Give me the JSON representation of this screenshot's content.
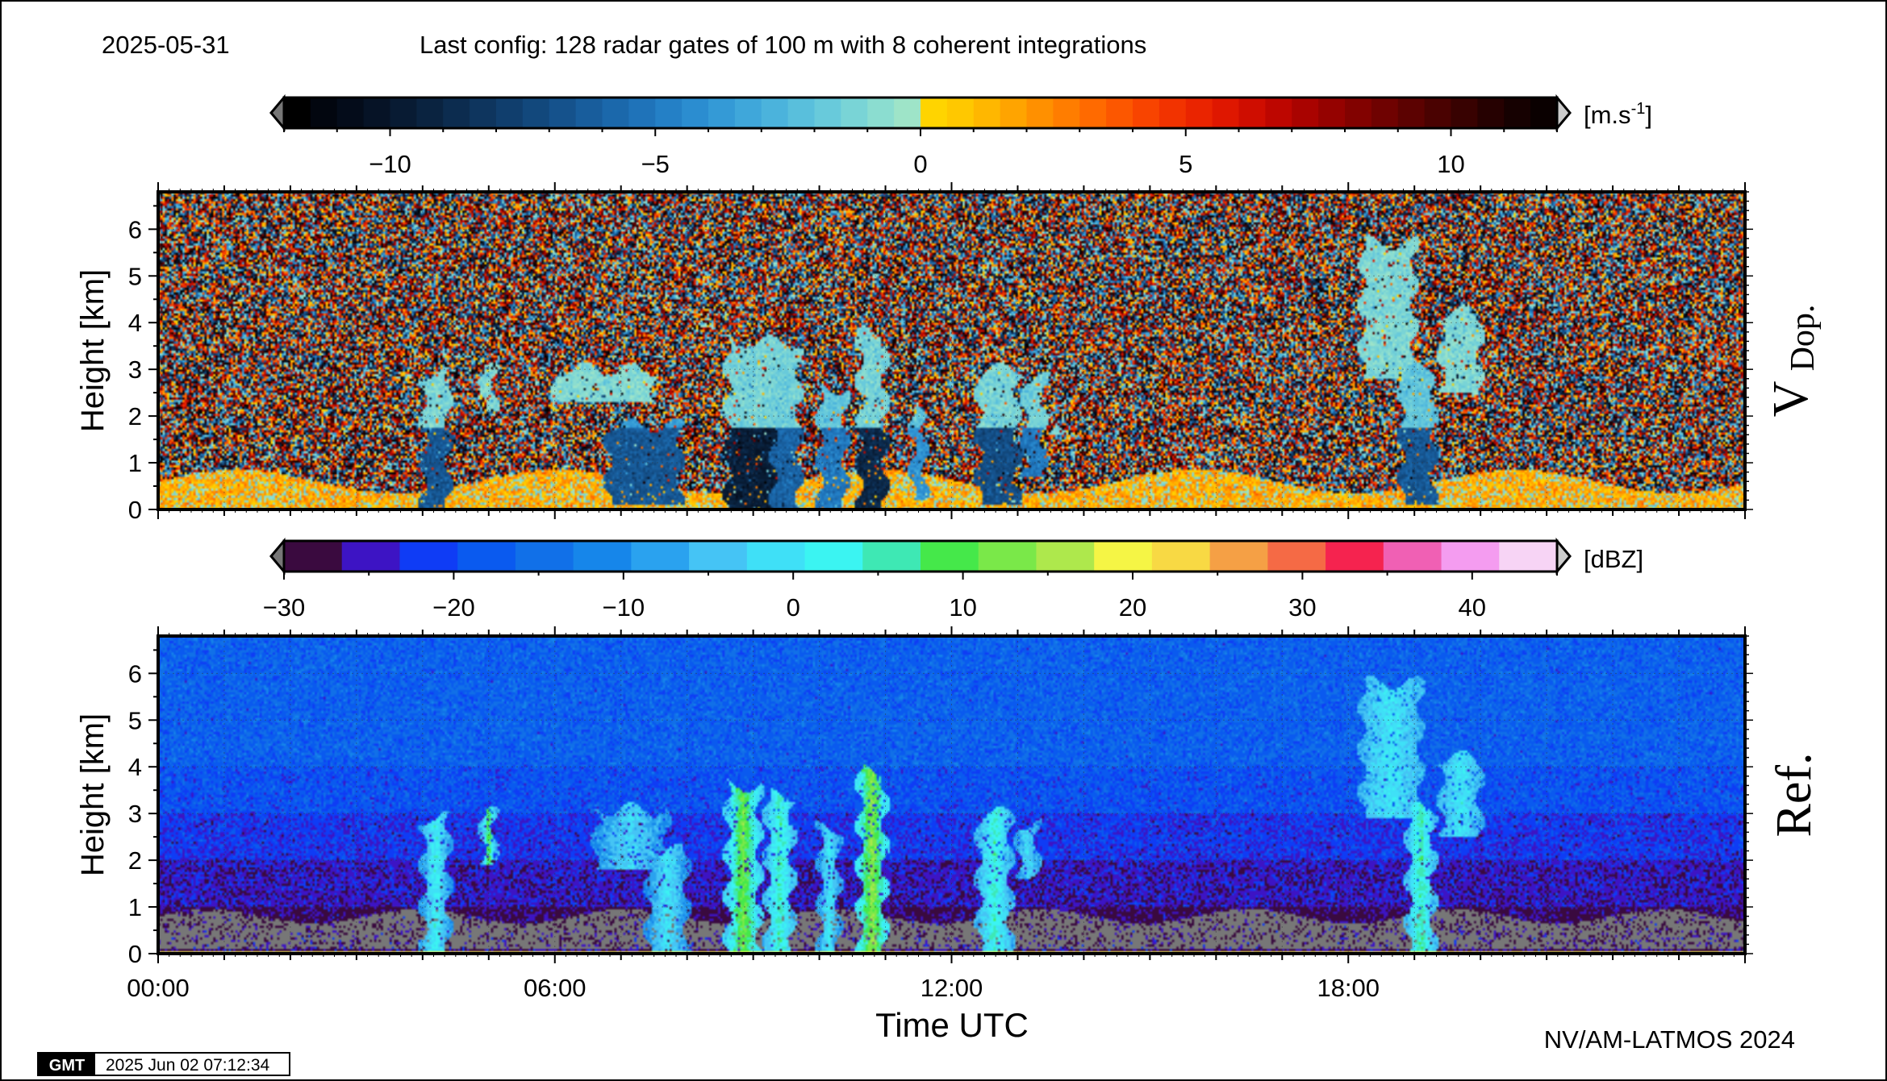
{
  "header": {
    "date": "2025-05-31",
    "config_text": "Last config: 128 radar gates of 100 m with 8 coherent integrations"
  },
  "footer": {
    "credit": "NV/AM-LATMOS 2024",
    "gmt_logo": "GMT",
    "timestamp": "2025 Jun 02 07:12:34"
  },
  "colorbars": {
    "doppler": {
      "unit": "[m.s-1]",
      "unit_main": "[m.s",
      "unit_sup": "-1",
      "unit_close": "]",
      "range": [
        -12,
        12
      ],
      "ticks": [
        -10,
        -5,
        0,
        5,
        10
      ],
      "tick_labels": [
        "−10",
        "−5",
        "0",
        "5",
        "10"
      ],
      "minor_step": 1,
      "colors": [
        "#000000",
        "#02060f",
        "#040c1a",
        "#061326",
        "#081b33",
        "#0a2340",
        "#0c2c4f",
        "#0e355e",
        "#103e6d",
        "#12487c",
        "#15528c",
        "#185d9c",
        "#1b68ab",
        "#1f73b9",
        "#2480c6",
        "#2b8dd0",
        "#349ad6",
        "#3fa7da",
        "#4bb3dc",
        "#59bfdc",
        "#68cadb",
        "#79d4d6",
        "#8bddd0",
        "#9ee4c8",
        "#ffd400",
        "#ffc800",
        "#ffb700",
        "#ffa400",
        "#ff9000",
        "#ff7d00",
        "#ff6a00",
        "#fc5700",
        "#f84400",
        "#f23300",
        "#ea2400",
        "#df1700",
        "#cf0d00",
        "#bd0600",
        "#a90300",
        "#950200",
        "#820200",
        "#6f0201",
        "#5c0201",
        "#4a0201",
        "#380201",
        "#260101",
        "#160101",
        "#0a0000"
      ],
      "under_color": "#777777",
      "over_color": "#cccccc"
    },
    "reflectivity": {
      "unit": "[dBZ]",
      "range": [
        -30,
        45
      ],
      "ticks": [
        -30,
        -20,
        -10,
        0,
        10,
        20,
        30,
        40
      ],
      "tick_labels": [
        "−30",
        "−20",
        "−10",
        "0",
        "10",
        "20",
        "30",
        "40"
      ],
      "minor_step": 5,
      "colors": [
        "#3a0a3f",
        "#3d14c4",
        "#0f3cf5",
        "#0a5aef",
        "#1170e8",
        "#1686ea",
        "#2aa2ef",
        "#45c4f5",
        "#3fe0f7",
        "#3bf4f2",
        "#3ee8b4",
        "#45e84a",
        "#7ae849",
        "#aee84c",
        "#f5f545",
        "#f8d944",
        "#f5a045",
        "#f56a45",
        "#f5234f",
        "#f060b4",
        "#f49cf0",
        "#f7d4f5"
      ],
      "under_color": "#777777",
      "over_color": "#cccccc"
    }
  },
  "panels": [
    {
      "side_label": "V",
      "side_label_sub": "Dop.",
      "ylabel": "Height [km]",
      "y_tick_labels": [
        "0",
        "1",
        "2",
        "3",
        "4",
        "5",
        "6"
      ]
    },
    {
      "side_label": "Ref.",
      "ylabel": "Height [km]",
      "y_tick_labels": [
        "0",
        "1",
        "2",
        "3",
        "4",
        "5",
        "6"
      ]
    }
  ],
  "x_axis": {
    "label": "Time UTC",
    "tick_labels": [
      "00:00",
      "06:00",
      "12:00",
      "18:00"
    ]
  },
  "chart_data": [
    {
      "type": "heatmap",
      "variable": "Doppler velocity",
      "units": "m.s-1",
      "x_unit": "hours UTC",
      "xlim": [
        0,
        24
      ],
      "ylim": [
        0,
        6.8
      ],
      "y_ticks": [
        0,
        1,
        2,
        3,
        4,
        5,
        6
      ],
      "x_ticks": [
        0,
        6,
        12,
        18
      ],
      "colorbar_range": [
        -12,
        12
      ],
      "background": "noise (random velocities, all colors)",
      "boundary_layer": {
        "height_km": 0.6,
        "typical_value": 1.5
      },
      "cells": [
        {
          "t_start": 4.0,
          "t_end": 4.4,
          "base_km": 0.0,
          "top_km": 2.9,
          "upper_value": -1.2,
          "lower_value": -6.5
        },
        {
          "t_start": 4.9,
          "t_end": 5.1,
          "base_km": 2.1,
          "top_km": 3.0,
          "upper_value": -1.0,
          "lower_value": -3.0
        },
        {
          "t_start": 6.0,
          "t_end": 7.5,
          "base_km": 2.3,
          "top_km": 3.0,
          "upper_value": -1.0,
          "lower_value": -1.5
        },
        {
          "t_start": 6.8,
          "t_end": 7.9,
          "base_km": 0.1,
          "top_km": 1.8,
          "upper_value": -3.5,
          "lower_value": -6.5
        },
        {
          "t_start": 8.6,
          "t_end": 9.6,
          "base_km": 0.0,
          "top_km": 3.6,
          "upper_value": -1.3,
          "lower_value": -9.5
        },
        {
          "t_start": 9.3,
          "t_end": 9.7,
          "base_km": 0.0,
          "top_km": 3.5,
          "upper_value": -1.5,
          "lower_value": -6.0
        },
        {
          "t_start": 10.0,
          "t_end": 10.4,
          "base_km": 0.0,
          "top_km": 2.6,
          "upper_value": -2.0,
          "lower_value": -5.0
        },
        {
          "t_start": 10.6,
          "t_end": 11.0,
          "base_km": 0.0,
          "top_km": 3.8,
          "upper_value": -1.3,
          "lower_value": -9.0
        },
        {
          "t_start": 11.4,
          "t_end": 11.6,
          "base_km": 0.2,
          "top_km": 2.2,
          "upper_value": -2.0,
          "lower_value": -4.0
        },
        {
          "t_start": 12.4,
          "t_end": 13.0,
          "base_km": 0.1,
          "top_km": 3.0,
          "upper_value": -1.3,
          "lower_value": -7.0
        },
        {
          "t_start": 13.1,
          "t_end": 13.4,
          "base_km": 0.7,
          "top_km": 2.8,
          "upper_value": -1.5,
          "lower_value": -5.0
        },
        {
          "t_start": 13.5,
          "t_end": 13.8,
          "base_km": 1.6,
          "top_km": 1.8,
          "upper_value": -1.5,
          "lower_value": -1.5
        },
        {
          "t_start": 18.2,
          "t_end": 19.0,
          "base_km": 2.8,
          "top_km": 5.7,
          "upper_value": -1.1,
          "lower_value": -1.5
        },
        {
          "t_start": 18.8,
          "t_end": 19.3,
          "base_km": 0.1,
          "top_km": 3.0,
          "upper_value": -2.0,
          "lower_value": -6.5
        },
        {
          "t_start": 19.4,
          "t_end": 20.0,
          "base_km": 2.5,
          "top_km": 4.2,
          "upper_value": -1.0,
          "lower_value": -1.5
        }
      ]
    },
    {
      "type": "heatmap",
      "variable": "Reflectivity",
      "units": "dBZ",
      "x_unit": "hours UTC",
      "xlim": [
        0,
        24
      ],
      "ylim": [
        0,
        6.8
      ],
      "y_ticks": [
        0,
        1,
        2,
        3,
        4,
        5,
        6
      ],
      "x_ticks": [
        0,
        6,
        12,
        18
      ],
      "colorbar_range": [
        -30,
        45
      ],
      "background_profile": [
        {
          "height_km": 0.5,
          "value": -27
        },
        {
          "height_km": 1.0,
          "value": -28
        },
        {
          "height_km": 2.0,
          "value": -25
        },
        {
          "height_km": 3.0,
          "value": -22
        },
        {
          "height_km": 4.0,
          "value": -19
        },
        {
          "height_km": 6.8,
          "value": -17
        }
      ],
      "below_range_band_km": [
        0.1,
        0.8
      ],
      "cells": [
        {
          "t_start": 4.0,
          "t_end": 4.4,
          "base_km": 0.0,
          "top_km": 2.9,
          "core_value": 2,
          "edge_value": -8
        },
        {
          "t_start": 4.9,
          "t_end": 5.1,
          "base_km": 1.9,
          "top_km": 3.0,
          "core_value": 10,
          "edge_value": -6
        },
        {
          "t_start": 6.6,
          "t_end": 7.7,
          "base_km": 1.8,
          "top_km": 3.1,
          "core_value": -2,
          "edge_value": -10
        },
        {
          "t_start": 7.4,
          "t_end": 8.0,
          "base_km": 0.0,
          "top_km": 2.2,
          "core_value": 0,
          "edge_value": -10
        },
        {
          "t_start": 8.6,
          "t_end": 9.1,
          "base_km": 0.0,
          "top_km": 3.6,
          "core_value": 12,
          "edge_value": -3
        },
        {
          "t_start": 9.2,
          "t_end": 9.6,
          "base_km": 0.0,
          "top_km": 3.4,
          "core_value": 5,
          "edge_value": -5
        },
        {
          "t_start": 10.0,
          "t_end": 10.3,
          "base_km": 0.0,
          "top_km": 2.7,
          "core_value": 0,
          "edge_value": -8
        },
        {
          "t_start": 10.6,
          "t_end": 11.0,
          "base_km": 0.0,
          "top_km": 3.9,
          "core_value": 14,
          "edge_value": 0
        },
        {
          "t_start": 12.4,
          "t_end": 12.9,
          "base_km": 0.0,
          "top_km": 3.0,
          "core_value": 4,
          "edge_value": -6
        },
        {
          "t_start": 13.0,
          "t_end": 13.3,
          "base_km": 1.6,
          "top_km": 2.8,
          "core_value": -2,
          "edge_value": -8
        },
        {
          "t_start": 18.2,
          "t_end": 19.1,
          "base_km": 2.9,
          "top_km": 5.8,
          "core_value": 0,
          "edge_value": -6
        },
        {
          "t_start": 18.9,
          "t_end": 19.3,
          "base_km": 0.0,
          "top_km": 3.1,
          "core_value": 6,
          "edge_value": -5
        },
        {
          "t_start": 19.4,
          "t_end": 20.0,
          "base_km": 2.5,
          "top_km": 4.2,
          "core_value": 0,
          "edge_value": -6
        }
      ]
    }
  ]
}
